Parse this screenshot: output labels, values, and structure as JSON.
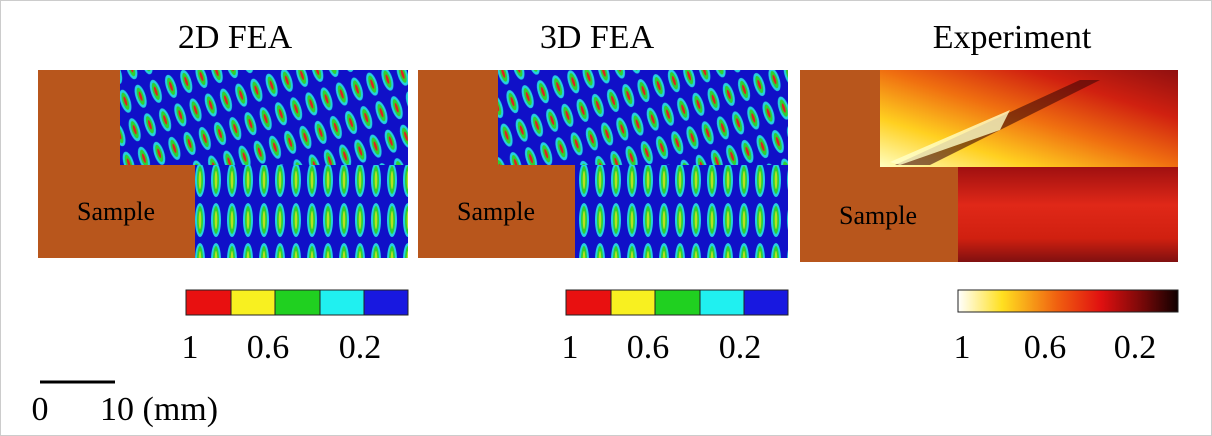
{
  "panels": [
    {
      "title": "2D FEA",
      "sample_label": "Sample",
      "colorbar_ticks": [
        "1",
        "0.6",
        "0.2"
      ]
    },
    {
      "title": "3D FEA",
      "sample_label": "Sample",
      "colorbar_ticks": [
        "1",
        "0.6",
        "0.2"
      ]
    },
    {
      "title": "Experiment",
      "sample_label": "Sample",
      "colorbar_ticks": [
        "1",
        "0.6",
        "0.2"
      ]
    }
  ],
  "scale_bar": {
    "start_label": "0",
    "end_label": "10 (mm)"
  }
}
